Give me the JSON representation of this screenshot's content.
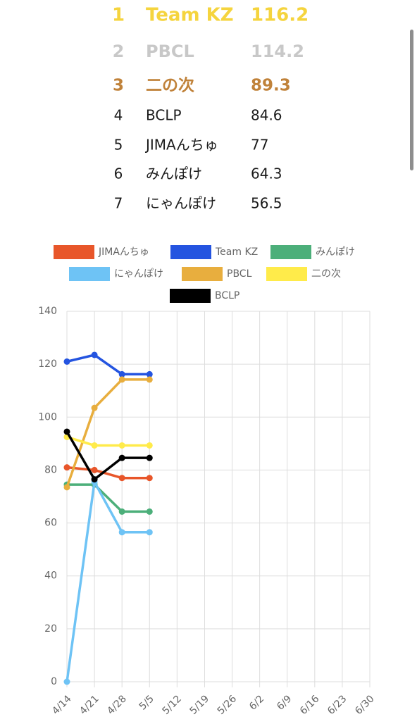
{
  "ranking": {
    "rows": [
      [
        "1",
        "Team KZ",
        "116.2"
      ],
      [
        "2",
        "PBCL",
        "114.2"
      ],
      [
        "3",
        "二の次",
        "89.3"
      ],
      [
        "4",
        "BCLP",
        "84.6"
      ],
      [
        "5",
        "JIMAんちゅ",
        "77"
      ],
      [
        "6",
        "みんぽけ",
        "64.3"
      ],
      [
        "7",
        "にゃんぽけ",
        "56.5"
      ]
    ]
  },
  "chart_data": {
    "type": "line",
    "categories": [
      "4/14",
      "4/21",
      "4/28",
      "5/5",
      "5/12",
      "5/19",
      "5/26",
      "6/2",
      "6/9",
      "6/16",
      "6/23",
      "6/30"
    ],
    "series": [
      {
        "name": "JIMAんちゅ",
        "color": "#e8562a",
        "values": [
          81,
          80,
          77,
          77,
          null,
          null,
          null,
          null,
          null,
          null,
          null,
          null
        ]
      },
      {
        "name": "Team KZ",
        "color": "#2454e0",
        "values": [
          121,
          123.5,
          116.2,
          116.2,
          null,
          null,
          null,
          null,
          null,
          null,
          null,
          null
        ]
      },
      {
        "name": "みんぽけ",
        "color": "#4caf7a",
        "values": [
          74.5,
          74.5,
          64.3,
          64.3,
          null,
          null,
          null,
          null,
          null,
          null,
          null,
          null
        ]
      },
      {
        "name": "にゃんぽけ",
        "color": "#6ec3f5",
        "values": [
          0,
          75.5,
          56.5,
          56.5,
          null,
          null,
          null,
          null,
          null,
          null,
          null,
          null
        ]
      },
      {
        "name": "PBCL",
        "color": "#e8ae3e",
        "values": [
          73.5,
          103.5,
          114.2,
          114.2,
          null,
          null,
          null,
          null,
          null,
          null,
          null,
          null
        ]
      },
      {
        "name": "二の次",
        "color": "#ffeb4a",
        "values": [
          92.5,
          89.3,
          89.3,
          89.3,
          null,
          null,
          null,
          null,
          null,
          null,
          null,
          null
        ]
      },
      {
        "name": "BCLP",
        "color": "#000000",
        "values": [
          94.5,
          76.5,
          84.6,
          84.6,
          null,
          null,
          null,
          null,
          null,
          null,
          null,
          null
        ]
      }
    ],
    "ylim": [
      0,
      140
    ],
    "yticks": [
      0,
      20,
      40,
      60,
      80,
      100,
      120,
      140
    ],
    "grid": true
  }
}
